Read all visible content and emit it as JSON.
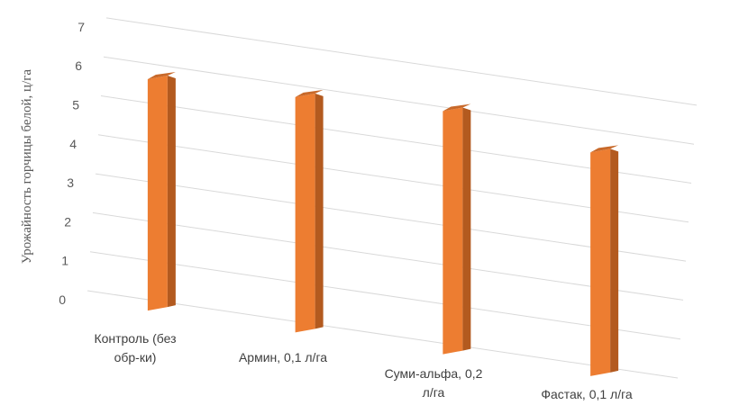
{
  "chart_data": {
    "type": "bar",
    "title": "",
    "xlabel": "",
    "ylabel": "Урожайность горчицы белой, ц/га",
    "ylim": [
      0,
      7
    ],
    "yticks": [
      "0",
      "1",
      "2",
      "3",
      "4",
      "5",
      "6",
      "7"
    ],
    "grid": true,
    "legend": "none",
    "categories": [
      [
        "Контроль (без",
        "обр-ки)"
      ],
      [
        "Армин, 0,1 л/га"
      ],
      [
        "Суми-альфа, 0,2",
        "л/га"
      ],
      [
        "Фастак, 0,1 л/га"
      ]
    ],
    "values": [
      5.8,
      5.9,
      6.1,
      5.6
    ],
    "colors": {
      "front": "#ED7D31",
      "side": "#B35A1F",
      "top": "#C8692A",
      "grid": "#D9D9D9"
    }
  }
}
